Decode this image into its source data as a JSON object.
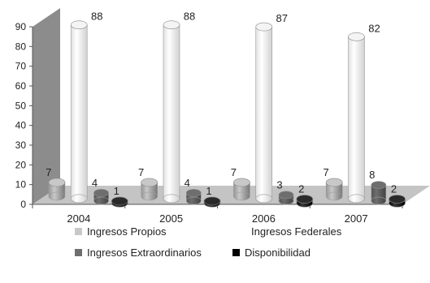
{
  "chart_data": {
    "type": "bar",
    "categories": [
      "2004",
      "2005",
      "2006",
      "2007"
    ],
    "series": [
      {
        "name": "Ingresos Propios",
        "values": [
          7,
          7,
          7,
          7
        ],
        "color": "#c8c8c8"
      },
      {
        "name": "Ingresos Federales",
        "values": [
          88,
          88,
          87,
          82
        ],
        "color": "#ffffff"
      },
      {
        "name": "Ingresos Extraordinarios",
        "values": [
          4,
          4,
          3,
          8
        ],
        "color": "#6e6e6e"
      },
      {
        "name": "Disponibilidad",
        "values": [
          1,
          1,
          2,
          2
        ],
        "color": "#000000"
      }
    ],
    "yticks": [
      0,
      10,
      20,
      30,
      40,
      50,
      60,
      70,
      80,
      90
    ],
    "ylim": [
      0,
      90
    ],
    "grid": false,
    "legend_placement": "bottom",
    "title": "",
    "xlabel": "",
    "ylabel": ""
  }
}
